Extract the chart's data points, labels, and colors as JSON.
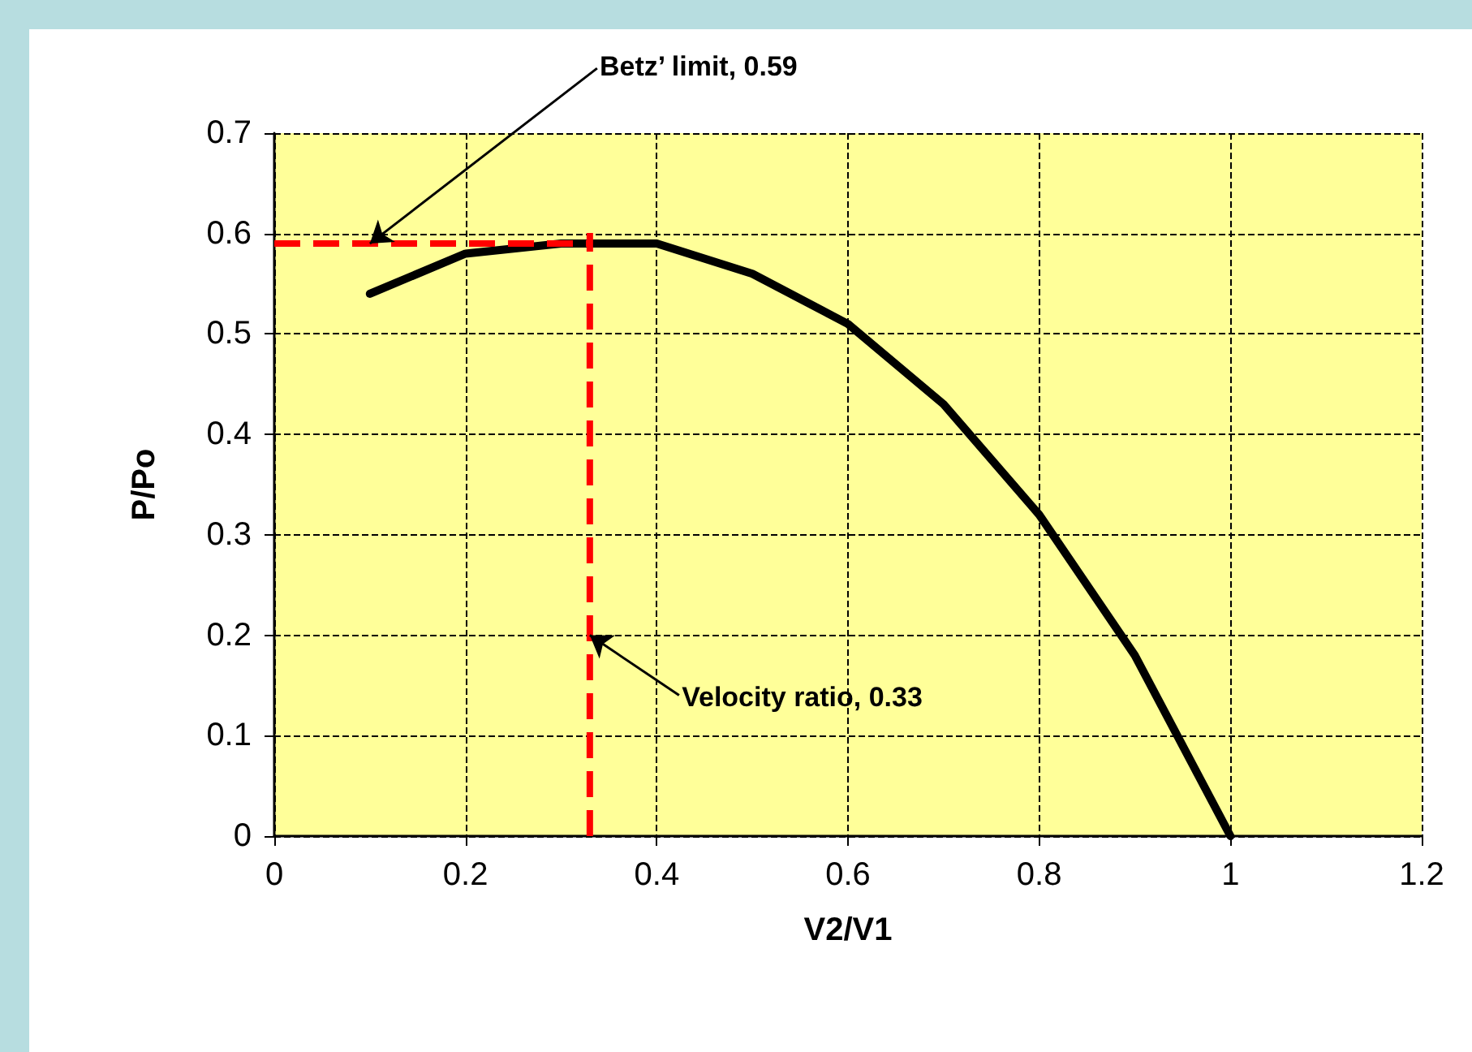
{
  "chart_data": {
    "type": "line",
    "xlabel": "V2/V1",
    "ylabel": "P/Po",
    "x": [
      0.1,
      0.2,
      0.3,
      0.4,
      0.5,
      0.6,
      0.7,
      0.8,
      0.9,
      1.0
    ],
    "series": [
      {
        "color": "#000000",
        "values": [
          0.54,
          0.58,
          0.59,
          0.59,
          0.56,
          0.51,
          0.43,
          0.32,
          0.18,
          0
        ]
      }
    ],
    "xlim": [
      0,
      1.2
    ],
    "xticks": [
      0,
      0.2,
      0.4,
      0.6,
      0.8,
      1,
      1.2
    ],
    "ylim": [
      0,
      0.7
    ],
    "yticks": [
      0,
      0.1,
      0.2,
      0.3,
      0.4,
      0.5,
      0.6,
      0.7
    ],
    "grid": true,
    "marker": "none",
    "line_style": "solid",
    "annotations": [
      {
        "text": "Betz’ limit, 0.59",
        "x": 0.1,
        "y": 0.59
      },
      {
        "text": "Velocity ratio, 0.33",
        "x": 0.33,
        "y": 0.2
      }
    ],
    "ref_lines": [
      {
        "axis": "y",
        "value": 0.59,
        "color": "#ff0000",
        "line_style": "dashed"
      },
      {
        "axis": "x",
        "value": 0.33,
        "color": "#ff0000",
        "line_style": "dashed"
      }
    ]
  }
}
